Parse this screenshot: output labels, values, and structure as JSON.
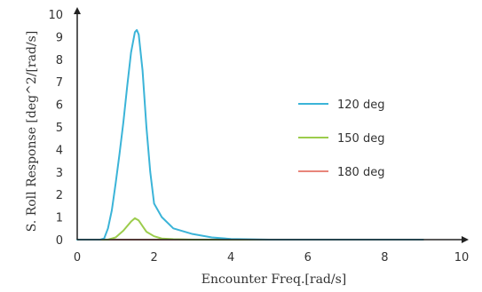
{
  "chart_data": {
    "type": "line",
    "title": "",
    "xlabel": "Encounter Freq.[rad/s]",
    "ylabel": "S. Roll Response [deg^2/[rad/s]",
    "xlim": [
      0,
      10
    ],
    "ylim": [
      0,
      10
    ],
    "x_ticks": [
      0,
      2,
      4,
      6,
      8,
      10
    ],
    "y_ticks": [
      0,
      1,
      2,
      3,
      4,
      5,
      6,
      7,
      8,
      9,
      10
    ],
    "grid": false,
    "legend_position": "right",
    "series": [
      {
        "name": "120 deg",
        "color": "#3bb4d8",
        "x": [
          0,
          0.6,
          0.7,
          0.8,
          0.9,
          1.0,
          1.1,
          1.2,
          1.3,
          1.4,
          1.5,
          1.55,
          1.6,
          1.7,
          1.8,
          1.9,
          2.0,
          2.2,
          2.5,
          3.0,
          3.5,
          4.0,
          5.0,
          7.0,
          9.0
        ],
        "y": [
          0,
          0,
          0.05,
          0.5,
          1.3,
          2.5,
          3.8,
          5.2,
          6.8,
          8.3,
          9.2,
          9.3,
          9.1,
          7.5,
          5.0,
          3.0,
          1.6,
          1.0,
          0.5,
          0.25,
          0.1,
          0.03,
          0,
          0,
          0
        ]
      },
      {
        "name": "150 deg",
        "color": "#9ccc4c",
        "x": [
          0,
          0.8,
          1.0,
          1.2,
          1.4,
          1.5,
          1.6,
          1.7,
          1.8,
          2.0,
          2.2,
          2.5,
          3.0,
          9.0
        ],
        "y": [
          0,
          0,
          0.1,
          0.4,
          0.8,
          0.95,
          0.85,
          0.6,
          0.35,
          0.15,
          0.05,
          0.02,
          0,
          0
        ]
      },
      {
        "name": "180 deg",
        "color": "#e8857a",
        "x": [
          0,
          2,
          4,
          6,
          8,
          9
        ],
        "y": [
          0,
          0,
          0,
          0,
          0,
          0
        ]
      }
    ]
  }
}
